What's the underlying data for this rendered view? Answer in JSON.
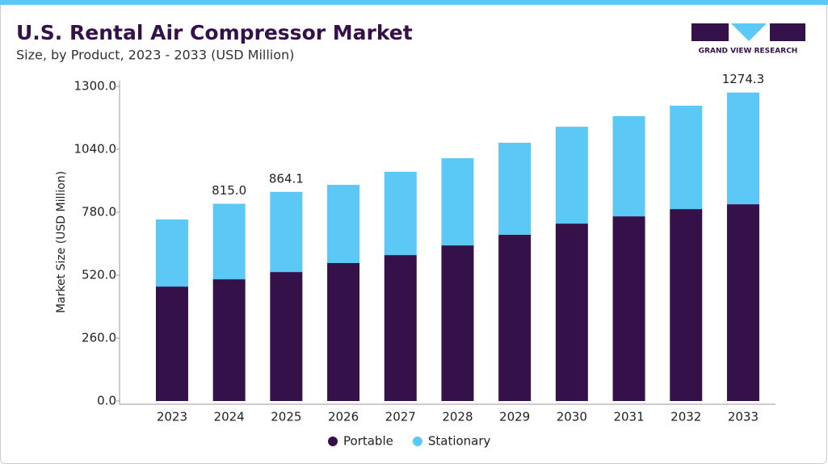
{
  "chart_data": {
    "type": "stacked_bar",
    "title": "U.S. Rental Air Compressor Market",
    "subtitle": "Size, by Product, 2023 - 2033 (USD Million)",
    "y_label": "Market Size (USD Million)",
    "brand": "GRAND VIEW RESEARCH",
    "categories": [
      "2023",
      "2024",
      "2025",
      "2026",
      "2027",
      "2028",
      "2029",
      "2030",
      "2031",
      "2032",
      "2033"
    ],
    "series": [
      {
        "name": "Portable",
        "color": "#35114a",
        "values": [
          473,
          503,
          533,
          570,
          603,
          643,
          687,
          733,
          763,
          793,
          813
        ]
      },
      {
        "name": "Stationary",
        "color": "#5bc8f5",
        "values": [
          277,
          312,
          331.1,
          323,
          344,
          360,
          380,
          400,
          414,
          427,
          461.3
        ]
      }
    ],
    "totals": [
      null,
      815,
      864.1,
      null,
      null,
      null,
      null,
      null,
      null,
      null,
      1274.3
    ],
    "total_labels": [
      null,
      "815.0",
      "864.1",
      null,
      null,
      null,
      null,
      null,
      null,
      null,
      "1274.3"
    ],
    "ylim": [
      0,
      1300
    ],
    "yticks": [
      {
        "value": 0,
        "label": "0.0"
      },
      {
        "value": 260,
        "label": "260.0"
      },
      {
        "value": 520,
        "label": "520.0"
      },
      {
        "value": 780,
        "label": "780.0"
      },
      {
        "value": 1040,
        "label": "1040.0"
      },
      {
        "value": 1300,
        "label": "1300.0"
      }
    ]
  }
}
